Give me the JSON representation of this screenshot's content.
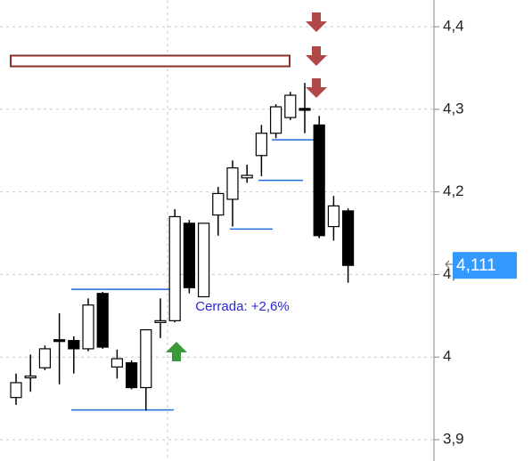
{
  "chart_data": {
    "type": "candlestick",
    "open": [
      3.951,
      3.975,
      3.987,
      4.021,
      4.02,
      4.01,
      4.077,
      3.988,
      3.993,
      3.963,
      4.043,
      4.044,
      4.162,
      4.073,
      4.172,
      4.191,
      4.217,
      4.244,
      4.271,
      4.29,
      4.301,
      4.281,
      4.158,
      4.177
    ],
    "high": [
      3.98,
      4.003,
      4.014,
      4.053,
      4.025,
      4.071,
      4.079,
      4.009,
      3.996,
      4.033,
      4.071,
      4.179,
      4.166,
      4.162,
      4.206,
      4.238,
      4.233,
      4.281,
      4.306,
      4.321,
      4.332,
      4.292,
      4.195,
      4.18
    ],
    "low": [
      3.942,
      3.958,
      3.984,
      3.967,
      3.98,
      4.007,
      4.01,
      3.974,
      3.961,
      3.935,
      4.023,
      4.042,
      4.077,
      4.073,
      4.147,
      4.158,
      4.211,
      4.219,
      4.265,
      4.287,
      4.271,
      4.144,
      4.141,
      4.09
    ],
    "close": [
      3.969,
      3.977,
      4.01,
      4.019,
      4.01,
      4.063,
      4.012,
      3.998,
      3.963,
      4.033,
      4.044,
      4.17,
      4.084,
      4.162,
      4.198,
      4.229,
      4.22,
      4.271,
      4.303,
      4.317,
      4.299,
      4.147,
      4.183,
      4.111
    ],
    "up_color": "#ffffff",
    "down_color": "#000000",
    "ylim": [
      3.87,
      4.43
    ],
    "yticks": [
      {
        "value": 3.9,
        "label": "3,9"
      },
      {
        "value": 4.0,
        "label": "4"
      },
      {
        "value": 4.1,
        "label": "4,1"
      },
      {
        "value": 4.2,
        "label": "4,2"
      },
      {
        "value": 4.3,
        "label": "4,3"
      },
      {
        "value": 4.4,
        "label": "4,4"
      }
    ],
    "grid": true,
    "last_price_label": "4,111",
    "annotation": "Cerrada: +2,6%",
    "levels": [
      4.082,
      3.936,
      4.155,
      4.214,
      4.263
    ],
    "level_color": "#1e6fd9",
    "zone": [
      4.352,
      4.365
    ],
    "zone_color": "#8b2e2e"
  }
}
